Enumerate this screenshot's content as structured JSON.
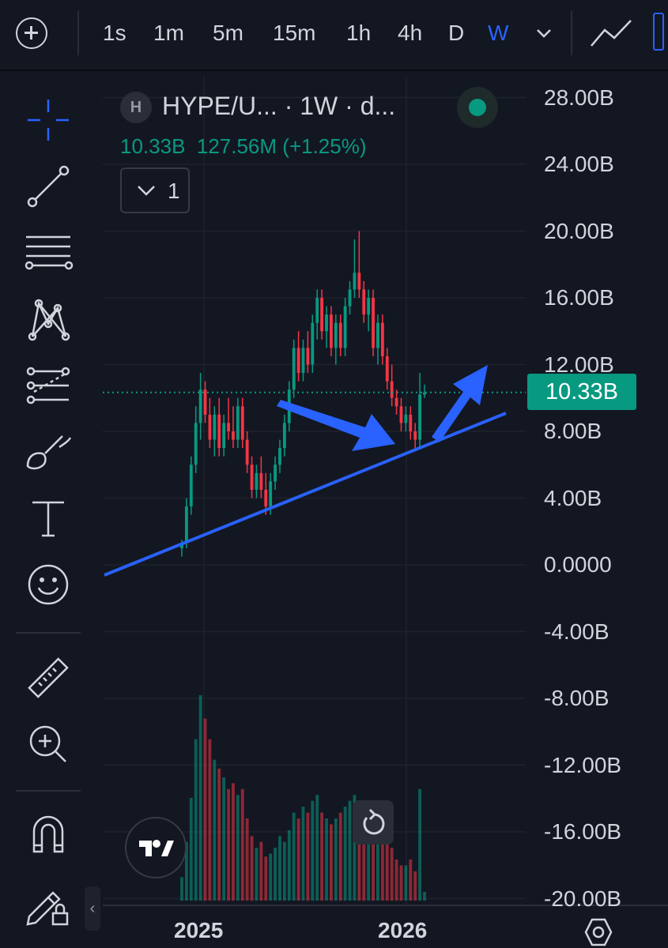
{
  "toolbar": {
    "add_icon": "plus-circle-icon",
    "timeframes": [
      "1s",
      "1m",
      "5m",
      "15m",
      "1h",
      "4h",
      "D",
      "W"
    ],
    "active_timeframe": "W",
    "dropdown_icon": "chevron-down-icon",
    "chart_type_icon": "line-chart-icon"
  },
  "tools": {
    "items": [
      "crosshair-icon",
      "trend-line-icon",
      "fib-lines-icon",
      "pattern-icon",
      "projection-icon",
      "brush-icon",
      "text-icon",
      "emoji-icon",
      "ruler-icon",
      "zoom-in-icon",
      "magnet-icon",
      "lock-pencil-icon"
    ],
    "collapse_label": "‹"
  },
  "legend": {
    "symbol_badge": "H",
    "symbol_title": "HYPE/U... · 1W · d...",
    "value": "10.33B",
    "change": "127.56M",
    "change_pct": "(+1.25%)",
    "indicators_count": "1"
  },
  "price_scale": {
    "labels": [
      "28.00B",
      "24.00B",
      "20.00B",
      "16.00B",
      "12.00B",
      "8.00B",
      "4.00B",
      "0.0000",
      "-4.00B",
      "-8.00B",
      "-12.00B",
      "-16.00B",
      "-20.00B"
    ],
    "last_price": "10.33B"
  },
  "time_scale": {
    "labels": [
      "2025",
      "2026"
    ]
  },
  "colors": {
    "up": "#089981",
    "down": "#f23645",
    "drawing": "#2962ff",
    "background": "#131722"
  },
  "chart_data": {
    "type": "candlestick",
    "title": "HYPE/U... · 1W · d...",
    "ylim": [
      -20,
      28
    ],
    "yunit": "B",
    "x_ticks": [
      "2025",
      "2026"
    ],
    "last_value": 10.33,
    "candles": [
      [
        1.0,
        1.5,
        0.5,
        1.3
      ],
      [
        1.3,
        4.0,
        1.0,
        3.5
      ],
      [
        3.5,
        6.5,
        3.0,
        6.0
      ],
      [
        6.0,
        9.5,
        5.5,
        8.5
      ],
      [
        8.5,
        11.5,
        7.5,
        10.5
      ],
      [
        10.5,
        11.0,
        8.5,
        9.0
      ],
      [
        9.0,
        10.0,
        7.0,
        7.5
      ],
      [
        7.5,
        9.5,
        6.5,
        9.0
      ],
      [
        9.0,
        10.0,
        6.5,
        7.0
      ],
      [
        7.0,
        9.0,
        6.5,
        8.5
      ],
      [
        8.5,
        10.0,
        7.5,
        8.0
      ],
      [
        8.0,
        9.5,
        7.0,
        7.5
      ],
      [
        7.5,
        10.0,
        7.0,
        9.5
      ],
      [
        9.5,
        10.0,
        7.0,
        7.5
      ],
      [
        7.5,
        8.0,
        5.5,
        6.0
      ],
      [
        6.0,
        6.5,
        4.0,
        4.5
      ],
      [
        4.5,
        6.0,
        4.0,
        5.5
      ],
      [
        5.5,
        6.5,
        4.0,
        4.5
      ],
      [
        4.5,
        5.5,
        3.0,
        3.5
      ],
      [
        3.5,
        5.5,
        3.0,
        5.0
      ],
      [
        5.0,
        6.5,
        4.5,
        6.0
      ],
      [
        6.0,
        7.5,
        5.5,
        7.0
      ],
      [
        7.0,
        9.0,
        6.5,
        8.5
      ],
      [
        8.5,
        11.0,
        8.0,
        10.5
      ],
      [
        10.5,
        13.5,
        10.0,
        13.0
      ],
      [
        13.0,
        14.0,
        11.0,
        11.5
      ],
      [
        11.5,
        13.5,
        11.0,
        13.0
      ],
      [
        13.0,
        14.0,
        11.5,
        12.0
      ],
      [
        12.0,
        15.0,
        11.5,
        14.5
      ],
      [
        14.5,
        16.5,
        13.5,
        16.0
      ],
      [
        16.0,
        16.5,
        13.5,
        14.0
      ],
      [
        14.0,
        15.5,
        13.0,
        15.0
      ],
      [
        15.0,
        15.5,
        12.5,
        13.0
      ],
      [
        13.0,
        15.0,
        12.0,
        14.5
      ],
      [
        14.5,
        15.0,
        12.5,
        13.0
      ],
      [
        13.0,
        16.0,
        12.5,
        15.5
      ],
      [
        15.5,
        17.0,
        15.0,
        16.5
      ],
      [
        16.5,
        19.5,
        16.0,
        17.5
      ],
      [
        17.5,
        20.0,
        16.0,
        16.5
      ],
      [
        16.5,
        17.0,
        14.5,
        15.0
      ],
      [
        15.0,
        16.5,
        14.0,
        16.0
      ],
      [
        16.0,
        16.5,
        12.5,
        13.0
      ],
      [
        13.0,
        15.0,
        12.0,
        14.5
      ],
      [
        14.5,
        15.0,
        12.0,
        12.5
      ],
      [
        12.5,
        13.0,
        10.5,
        11.0
      ],
      [
        11.0,
        12.0,
        9.5,
        10.0
      ],
      [
        10.0,
        10.5,
        9.0,
        9.5
      ],
      [
        9.5,
        10.0,
        8.0,
        8.5
      ],
      [
        8.5,
        9.5,
        8.0,
        9.0
      ],
      [
        9.0,
        9.5,
        7.5,
        8.0
      ],
      [
        8.0,
        8.5,
        7.0,
        7.5
      ],
      [
        7.5,
        11.5,
        7.0,
        10.2
      ],
      [
        10.2,
        10.8,
        10.0,
        10.33
      ]
    ],
    "volumes": [
      8,
      20,
      35,
      55,
      70,
      62,
      55,
      48,
      45,
      42,
      38,
      40,
      36,
      38,
      28,
      22,
      18,
      20,
      15,
      16,
      18,
      22,
      20,
      24,
      30,
      28,
      32,
      30,
      34,
      36,
      30,
      28,
      26,
      28,
      30,
      32,
      34,
      36,
      32,
      30,
      28,
      26,
      22,
      24,
      20,
      18,
      14,
      12,
      12,
      14,
      10,
      38,
      3
    ]
  }
}
